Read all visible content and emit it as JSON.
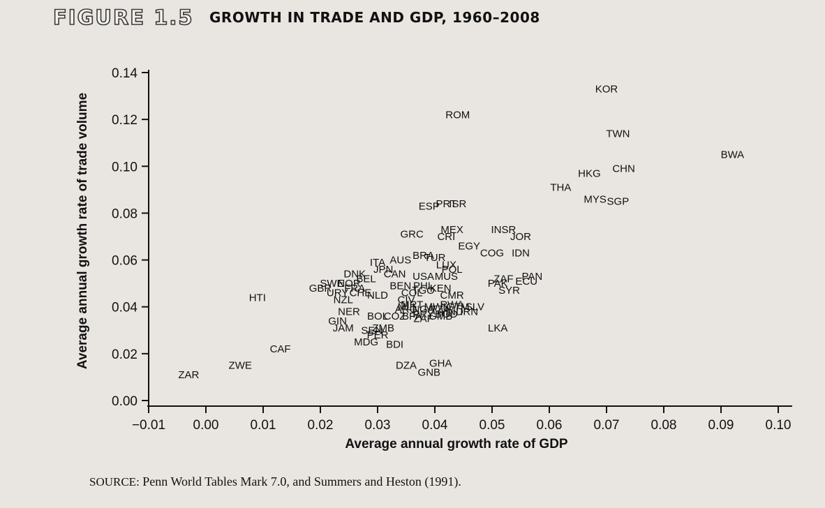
{
  "figure": {
    "number": "FIGURE 1.5",
    "title": "GROWTH IN TRADE AND GDP, 1960–2008"
  },
  "source": {
    "label": "SOURCE:",
    "text": "Penn World Tables Mark 7.0, and Summers and Heston (1991)."
  },
  "chart_data": {
    "type": "scatter",
    "xlabel": "Average annual growth rate of GDP",
    "ylabel": "Average annual growth rate of trade volume",
    "xlim": [
      -0.01,
      0.1
    ],
    "ylim": [
      0.0,
      0.14
    ],
    "xticks": [
      "−0.01",
      "0.00",
      "0.01",
      "0.02",
      "0.03",
      "0.04",
      "0.05",
      "0.06",
      "0.07",
      "0.08",
      "0.09",
      "0.10"
    ],
    "yticks": [
      "0.00",
      "0.02",
      "0.04",
      "0.06",
      "0.08",
      "0.10",
      "0.12",
      "0.14"
    ],
    "grid": false,
    "points": [
      {
        "label": "KOR",
        "x": 0.07,
        "y": 0.133
      },
      {
        "label": "ROM",
        "x": 0.044,
        "y": 0.122
      },
      {
        "label": "TWN",
        "x": 0.072,
        "y": 0.114
      },
      {
        "label": "BWA",
        "x": 0.092,
        "y": 0.105
      },
      {
        "label": "CHN",
        "x": 0.073,
        "y": 0.099
      },
      {
        "label": "HKG",
        "x": 0.067,
        "y": 0.097
      },
      {
        "label": "THA",
        "x": 0.062,
        "y": 0.091
      },
      {
        "label": "MYS",
        "x": 0.068,
        "y": 0.086
      },
      {
        "label": "SGP",
        "x": 0.072,
        "y": 0.085
      },
      {
        "label": "ESP",
        "x": 0.039,
        "y": 0.083
      },
      {
        "label": "PRT",
        "x": 0.042,
        "y": 0.084
      },
      {
        "label": "ISR",
        "x": 0.044,
        "y": 0.084
      },
      {
        "label": "MEX",
        "x": 0.043,
        "y": 0.073
      },
      {
        "label": "INSR",
        "x": 0.052,
        "y": 0.073
      },
      {
        "label": "GRC",
        "x": 0.036,
        "y": 0.071
      },
      {
        "label": "JOR",
        "x": 0.055,
        "y": 0.07
      },
      {
        "label": "CRI",
        "x": 0.042,
        "y": 0.07
      },
      {
        "label": "EGY",
        "x": 0.046,
        "y": 0.066
      },
      {
        "label": "IDN",
        "x": 0.055,
        "y": 0.063
      },
      {
        "label": "BRA",
        "x": 0.038,
        "y": 0.062
      },
      {
        "label": "COG",
        "x": 0.05,
        "y": 0.063
      },
      {
        "label": "TUR",
        "x": 0.04,
        "y": 0.061
      },
      {
        "label": "AUS",
        "x": 0.034,
        "y": 0.06
      },
      {
        "label": "LUX",
        "x": 0.042,
        "y": 0.058
      },
      {
        "label": "ITA",
        "x": 0.03,
        "y": 0.059
      },
      {
        "label": "POL",
        "x": 0.043,
        "y": 0.056
      },
      {
        "label": "JPN",
        "x": 0.031,
        "y": 0.056
      },
      {
        "label": "DNK",
        "x": 0.026,
        "y": 0.054
      },
      {
        "label": "CAN",
        "x": 0.033,
        "y": 0.054
      },
      {
        "label": "USA",
        "x": 0.038,
        "y": 0.053
      },
      {
        "label": "MUS",
        "x": 0.042,
        "y": 0.053
      },
      {
        "label": "PAN",
        "x": 0.057,
        "y": 0.053
      },
      {
        "label": "ZAF",
        "x": 0.052,
        "y": 0.052
      },
      {
        "label": "ECU",
        "x": 0.056,
        "y": 0.051
      },
      {
        "label": "BEL",
        "x": 0.028,
        "y": 0.052
      },
      {
        "label": "PAK",
        "x": 0.051,
        "y": 0.05
      },
      {
        "label": "SWE",
        "x": 0.022,
        "y": 0.05
      },
      {
        "label": "NOR",
        "x": 0.025,
        "y": 0.05
      },
      {
        "label": "PHL",
        "x": 0.038,
        "y": 0.049
      },
      {
        "label": "GBR",
        "x": 0.02,
        "y": 0.048
      },
      {
        "label": "FRA",
        "x": 0.026,
        "y": 0.048
      },
      {
        "label": "BEN",
        "x": 0.034,
        "y": 0.049
      },
      {
        "label": "KEN",
        "x": 0.041,
        "y": 0.048
      },
      {
        "label": "SYR",
        "x": 0.053,
        "y": 0.047
      },
      {
        "label": "URY",
        "x": 0.023,
        "y": 0.046
      },
      {
        "label": "CHE",
        "x": 0.027,
        "y": 0.046
      },
      {
        "label": "COL",
        "x": 0.036,
        "y": 0.046
      },
      {
        "label": "TGO",
        "x": 0.038,
        "y": 0.047
      },
      {
        "label": "NLD",
        "x": 0.03,
        "y": 0.045
      },
      {
        "label": "CMR",
        "x": 0.043,
        "y": 0.045
      },
      {
        "label": "HTI",
        "x": 0.009,
        "y": 0.044
      },
      {
        "label": "NZL",
        "x": 0.024,
        "y": 0.043
      },
      {
        "label": "CIV",
        "x": 0.035,
        "y": 0.043
      },
      {
        "label": "MRT",
        "x": 0.036,
        "y": 0.041
      },
      {
        "label": "MLI",
        "x": 0.035,
        "y": 0.04
      },
      {
        "label": "MWI",
        "x": 0.04,
        "y": 0.04
      },
      {
        "label": "RWA",
        "x": 0.043,
        "y": 0.041
      },
      {
        "label": "NGA",
        "x": 0.038,
        "y": 0.039
      },
      {
        "label": "TZA",
        "x": 0.041,
        "y": 0.039
      },
      {
        "label": "GTM",
        "x": 0.044,
        "y": 0.04
      },
      {
        "label": "ARG",
        "x": 0.035,
        "y": 0.039
      },
      {
        "label": "SLV",
        "x": 0.047,
        "y": 0.04
      },
      {
        "label": "HND",
        "x": 0.043,
        "y": 0.038
      },
      {
        "label": "NER",
        "x": 0.025,
        "y": 0.038
      },
      {
        "label": "PRY",
        "x": 0.038,
        "y": 0.037
      },
      {
        "label": "IRN",
        "x": 0.046,
        "y": 0.038
      },
      {
        "label": "BOL",
        "x": 0.03,
        "y": 0.036
      },
      {
        "label": "COZ",
        "x": 0.033,
        "y": 0.036
      },
      {
        "label": "BFA",
        "x": 0.036,
        "y": 0.036
      },
      {
        "label": "GMB",
        "x": 0.041,
        "y": 0.036
      },
      {
        "label": "BGD",
        "x": 0.042,
        "y": 0.037
      },
      {
        "label": "ZAF",
        "x": 0.038,
        "y": 0.035
      },
      {
        "label": "GIN",
        "x": 0.023,
        "y": 0.034
      },
      {
        "label": "JAM",
        "x": 0.024,
        "y": 0.031
      },
      {
        "label": "ZMB",
        "x": 0.031,
        "y": 0.031
      },
      {
        "label": "LKA",
        "x": 0.051,
        "y": 0.031
      },
      {
        "label": "SEN",
        "x": 0.029,
        "y": 0.03
      },
      {
        "label": "PER",
        "x": 0.03,
        "y": 0.028
      },
      {
        "label": "MDG",
        "x": 0.028,
        "y": 0.025
      },
      {
        "label": "BDI",
        "x": 0.033,
        "y": 0.024
      },
      {
        "label": "CAF",
        "x": 0.013,
        "y": 0.022
      },
      {
        "label": "GHA",
        "x": 0.041,
        "y": 0.016
      },
      {
        "label": "ZWE",
        "x": 0.006,
        "y": 0.015
      },
      {
        "label": "DZA",
        "x": 0.035,
        "y": 0.015
      },
      {
        "label": "GNB",
        "x": 0.039,
        "y": 0.012
      },
      {
        "label": "ZAR",
        "x": -0.003,
        "y": 0.011
      }
    ]
  }
}
